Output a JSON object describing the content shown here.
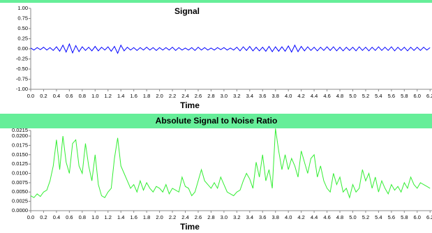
{
  "chart_data": [
    {
      "type": "line",
      "title": "Signal",
      "x_label": "Time",
      "color": "#0000ff",
      "xlim": [
        0,
        6.23
      ],
      "ylim": [
        -1,
        1
      ],
      "yticks": [
        {
          "value": 1,
          "label": "1.00"
        },
        0.75,
        {
          "value": 0.5,
          "label": "0.50"
        },
        0.25,
        {
          "value": 0,
          "label": "0.00"
        },
        -0.25,
        {
          "value": -0.5,
          "label": "-0.50"
        },
        -0.75,
        {
          "value": -1,
          "label": "-1.00"
        }
      ],
      "xticks": [
        {
          "value": 0,
          "label": "0.0"
        },
        0.2,
        0.4,
        0.6,
        0.8,
        {
          "value": 1,
          "label": "1.0"
        },
        1.2,
        1.4,
        1.6,
        1.8,
        {
          "value": 2,
          "label": "2.0"
        },
        2.2,
        2.4,
        2.6,
        2.8,
        {
          "value": 3,
          "label": "3.0"
        },
        3.2,
        3.4,
        3.6,
        3.8,
        {
          "value": 4,
          "label": "4.0"
        },
        4.2,
        4.4,
        4.6,
        4.8,
        {
          "value": 5,
          "label": "5.0"
        },
        5.2,
        5.4,
        5.6,
        5.8,
        {
          "value": 6,
          "label": "6.0"
        },
        6.2
      ],
      "x": [
        0,
        0.05,
        0.1,
        0.15,
        0.2,
        0.25,
        0.3,
        0.35,
        0.4,
        0.45,
        0.5,
        0.55,
        0.6,
        0.65,
        0.7,
        0.75,
        0.8,
        0.85,
        0.9,
        0.95,
        1,
        1.05,
        1.1,
        1.15,
        1.2,
        1.25,
        1.3,
        1.35,
        1.4,
        1.45,
        1.5,
        1.55,
        1.6,
        1.65,
        1.7,
        1.75,
        1.8,
        1.85,
        1.9,
        1.95,
        2,
        2.05,
        2.1,
        2.15,
        2.2,
        2.25,
        2.3,
        2.35,
        2.4,
        2.45,
        2.5,
        2.55,
        2.6,
        2.65,
        2.7,
        2.75,
        2.8,
        2.85,
        2.9,
        2.95,
        3,
        3.05,
        3.1,
        3.15,
        3.2,
        3.25,
        3.3,
        3.35,
        3.4,
        3.45,
        3.5,
        3.55,
        3.6,
        3.65,
        3.7,
        3.75,
        3.8,
        3.85,
        3.9,
        3.95,
        4,
        4.05,
        4.1,
        4.15,
        4.2,
        4.25,
        4.3,
        4.35,
        4.4,
        4.45,
        4.5,
        4.55,
        4.6,
        4.65,
        4.7,
        4.75,
        4.8,
        4.85,
        4.9,
        4.95,
        5,
        5.05,
        5.1,
        5.15,
        5.2,
        5.25,
        5.3,
        5.35,
        5.4,
        5.45,
        5.5,
        5.55,
        5.6,
        5.65,
        5.7,
        5.75,
        5.8,
        5.85,
        5.9,
        5.95,
        6,
        6.05,
        6.1,
        6.15,
        6.2
      ],
      "values": [
        0.02,
        -0.03,
        0.03,
        -0.02,
        0.04,
        -0.03,
        0.03,
        -0.04,
        0.05,
        -0.06,
        0.09,
        -0.08,
        0.12,
        -0.1,
        0.08,
        -0.07,
        0.05,
        -0.04,
        0.04,
        -0.05,
        0.06,
        -0.05,
        0.04,
        -0.03,
        0.05,
        -0.06,
        0.06,
        -0.11,
        0.09,
        -0.05,
        0.04,
        -0.03,
        0.03,
        -0.04,
        0.03,
        -0.03,
        0.04,
        -0.03,
        0.03,
        -0.04,
        0.03,
        -0.03,
        0.03,
        -0.03,
        0.04,
        -0.04,
        0.03,
        -0.03,
        0.02,
        -0.03,
        0.03,
        -0.04,
        0.04,
        -0.03,
        0.03,
        -0.03,
        0.02,
        -0.03,
        0.03,
        -0.02,
        0.03,
        -0.03,
        0.02,
        -0.03,
        0.04,
        -0.05,
        0.05,
        -0.04,
        0.06,
        -0.05,
        0.04,
        -0.05,
        0.04,
        -0.06,
        0.06,
        -0.07,
        0.05,
        -0.06,
        0.05,
        -0.06,
        0.07,
        -0.08,
        0.09,
        -0.07,
        0.06,
        -0.05,
        0.05,
        -0.04,
        0.04,
        -0.05,
        0.04,
        -0.04,
        0.05,
        -0.04,
        0.05,
        -0.05,
        0.04,
        -0.05,
        0.04,
        -0.04,
        0.04,
        -0.05,
        0.05,
        -0.04,
        0.04,
        -0.05,
        0.04,
        -0.04,
        0.05,
        -0.04,
        0.04,
        -0.04,
        0.05,
        -0.05,
        0.04,
        -0.04,
        0.04,
        -0.05,
        0.04,
        -0.04,
        0.04,
        -0.04,
        0.04,
        -0.03,
        0.03
      ]
    },
    {
      "type": "line",
      "title": "Absolute Signal to Noise Ratio",
      "x_label": "Time",
      "color": "#33ee33",
      "xlim": [
        0,
        6.23
      ],
      "ylim": [
        0,
        0.0215
      ],
      "yticks": [
        {
          "value": 0,
          "label": "0.0000"
        },
        0.0025,
        {
          "value": 0.005,
          "label": "0.0050"
        },
        0.0075,
        {
          "value": 0.01,
          "label": "0.0100"
        },
        0.0125,
        {
          "value": 0.015,
          "label": "0.0150"
        },
        0.0175,
        {
          "value": 0.02,
          "label": "0.0200"
        },
        0.0215
      ],
      "xticks": [
        {
          "value": 0,
          "label": "0.0"
        },
        0.2,
        0.4,
        0.6,
        0.8,
        {
          "value": 1,
          "label": "1.0"
        },
        1.2,
        1.4,
        1.6,
        1.8,
        {
          "value": 2,
          "label": "2.0"
        },
        2.2,
        2.4,
        2.6,
        2.8,
        {
          "value": 3,
          "label": "3.0"
        },
        3.2,
        3.4,
        3.6,
        3.8,
        {
          "value": 4,
          "label": "4.0"
        },
        4.2,
        4.4,
        4.6,
        4.8,
        {
          "value": 5,
          "label": "5.0"
        },
        5.2,
        5.4,
        5.6,
        5.8,
        {
          "value": 6,
          "label": "6.0"
        },
        6.2
      ],
      "x": [
        0,
        0.05,
        0.1,
        0.15,
        0.2,
        0.25,
        0.3,
        0.35,
        0.4,
        0.45,
        0.5,
        0.55,
        0.6,
        0.65,
        0.7,
        0.75,
        0.8,
        0.85,
        0.9,
        0.95,
        1,
        1.05,
        1.1,
        1.15,
        1.2,
        1.25,
        1.3,
        1.35,
        1.4,
        1.45,
        1.5,
        1.55,
        1.6,
        1.65,
        1.7,
        1.75,
        1.8,
        1.85,
        1.9,
        1.95,
        2,
        2.05,
        2.1,
        2.15,
        2.2,
        2.25,
        2.3,
        2.35,
        2.4,
        2.45,
        2.5,
        2.55,
        2.6,
        2.65,
        2.7,
        2.75,
        2.8,
        2.85,
        2.9,
        2.95,
        3,
        3.05,
        3.1,
        3.15,
        3.2,
        3.25,
        3.3,
        3.35,
        3.4,
        3.45,
        3.5,
        3.55,
        3.6,
        3.65,
        3.7,
        3.75,
        3.8,
        3.85,
        3.9,
        3.95,
        4,
        4.05,
        4.1,
        4.15,
        4.2,
        4.25,
        4.3,
        4.35,
        4.4,
        4.45,
        4.5,
        4.55,
        4.6,
        4.65,
        4.7,
        4.75,
        4.8,
        4.85,
        4.9,
        4.95,
        5,
        5.05,
        5.1,
        5.15,
        5.2,
        5.25,
        5.3,
        5.35,
        5.4,
        5.45,
        5.5,
        5.55,
        5.6,
        5.65,
        5.7,
        5.75,
        5.8,
        5.85,
        5.9,
        5.95,
        6,
        6.05,
        6.1,
        6.15,
        6.2
      ],
      "values": [
        0.004,
        0.0035,
        0.0045,
        0.0038,
        0.005,
        0.0055,
        0.008,
        0.012,
        0.019,
        0.011,
        0.02,
        0.013,
        0.01,
        0.018,
        0.019,
        0.012,
        0.01,
        0.018,
        0.012,
        0.008,
        0.015,
        0.007,
        0.004,
        0.0035,
        0.005,
        0.006,
        0.014,
        0.0195,
        0.012,
        0.01,
        0.008,
        0.006,
        0.007,
        0.005,
        0.008,
        0.0055,
        0.0075,
        0.006,
        0.005,
        0.0065,
        0.006,
        0.005,
        0.007,
        0.0045,
        0.006,
        0.0055,
        0.005,
        0.009,
        0.0065,
        0.006,
        0.004,
        0.005,
        0.008,
        0.011,
        0.008,
        0.007,
        0.006,
        0.0075,
        0.006,
        0.009,
        0.007,
        0.005,
        0.0045,
        0.004,
        0.005,
        0.0055,
        0.008,
        0.01,
        0.0085,
        0.006,
        0.013,
        0.009,
        0.015,
        0.008,
        0.011,
        0.006,
        0.022,
        0.016,
        0.011,
        0.015,
        0.011,
        0.014,
        0.012,
        0.009,
        0.016,
        0.013,
        0.01,
        0.014,
        0.015,
        0.009,
        0.012,
        0.008,
        0.006,
        0.005,
        0.01,
        0.007,
        0.009,
        0.005,
        0.006,
        0.0035,
        0.007,
        0.005,
        0.006,
        0.011,
        0.008,
        0.01,
        0.006,
        0.009,
        0.005,
        0.008,
        0.006,
        0.0045,
        0.007,
        0.0055,
        0.0065,
        0.005,
        0.0075,
        0.006,
        0.009,
        0.007,
        0.006,
        0.0075,
        0.007,
        0.0065,
        0.006
      ]
    }
  ]
}
